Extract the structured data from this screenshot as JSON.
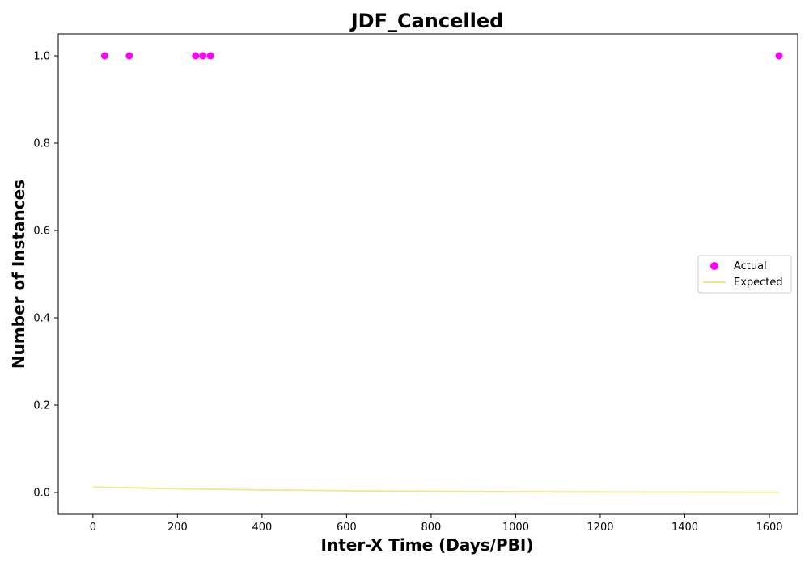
{
  "chart_data": {
    "type": "scatter",
    "title": "JDF_Cancelled",
    "xlabel": "Inter-X Time (Days/PBI)",
    "ylabel": "Number of Instances",
    "xlim": [
      -82,
      1667
    ],
    "ylim": [
      -0.05,
      1.05
    ],
    "x_ticks": [
      "0",
      "200",
      "400",
      "600",
      "800",
      "1000",
      "1200",
      "1400",
      "1600"
    ],
    "y_ticks": [
      "0.0",
      "0.2",
      "0.4",
      "0.6",
      "0.8",
      "1.0"
    ],
    "grid": false,
    "legend_position": "center-right",
    "series": [
      {
        "name": "Actual",
        "kind": "scatter",
        "color": "#ff00ff",
        "x": [
          28,
          86,
          243,
          260,
          278,
          1623
        ],
        "y": [
          1,
          1,
          1,
          1,
          1,
          1
        ]
      },
      {
        "name": "Expected",
        "kind": "line",
        "color": "#f0e68c",
        "x": [
          0,
          200,
          400,
          600,
          800,
          1000,
          1200,
          1400,
          1623
        ],
        "y": [
          0.0125,
          0.0085,
          0.0058,
          0.004,
          0.0027,
          0.0019,
          0.0013,
          0.0009,
          0.0006
        ]
      }
    ]
  }
}
